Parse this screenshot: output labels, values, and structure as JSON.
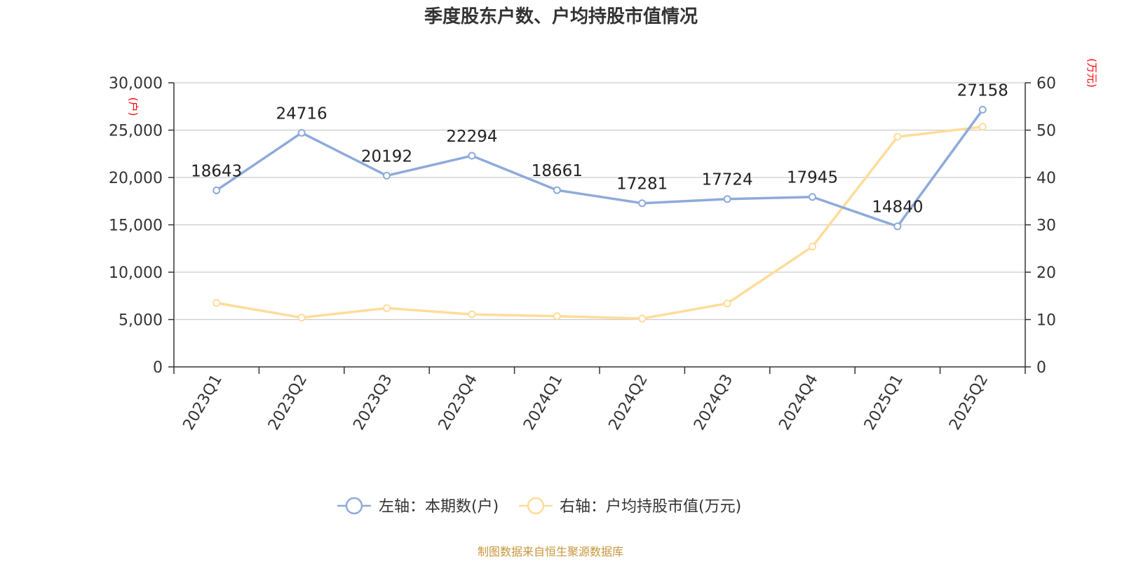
{
  "chart_data": {
    "type": "line",
    "title": "季度股东户数、户均持股市值情况",
    "categories": [
      "2023Q1",
      "2023Q2",
      "2023Q3",
      "2023Q4",
      "2024Q1",
      "2024Q2",
      "2024Q3",
      "2024Q4",
      "2025Q1",
      "2025Q2"
    ],
    "y_left": {
      "unit": "(户)",
      "ylim": [
        0,
        30000
      ],
      "ticks": [
        "0",
        "5,000",
        "10,000",
        "15,000",
        "20,000",
        "25,000",
        "30,000"
      ]
    },
    "y_right": {
      "unit": "(万元)",
      "ylim": [
        0,
        60
      ],
      "ticks": [
        "0",
        "10",
        "20",
        "30",
        "40",
        "50",
        "60"
      ]
    },
    "grid": true,
    "legend_position": "bottom-center",
    "series": [
      {
        "name": "左轴：本期数(户)",
        "axis": "left",
        "color": "#8eaadb",
        "values": [
          18643,
          24716,
          20192,
          22294,
          18661,
          17281,
          17724,
          17945,
          14840,
          27158
        ],
        "labels": [
          "18643",
          "24716",
          "20192",
          "22294",
          "18661",
          "17281",
          "17724",
          "17945",
          "14840",
          "27158"
        ]
      },
      {
        "name": "右轴：户均持股市值(万元)",
        "axis": "right",
        "color": "#ffdc9a",
        "values": [
          13.5,
          10.4,
          12.4,
          11.1,
          10.7,
          10.2,
          13.4,
          25.4,
          48.6,
          50.7
        ]
      }
    ],
    "source": "制图数据来自恒生聚源数据库"
  }
}
